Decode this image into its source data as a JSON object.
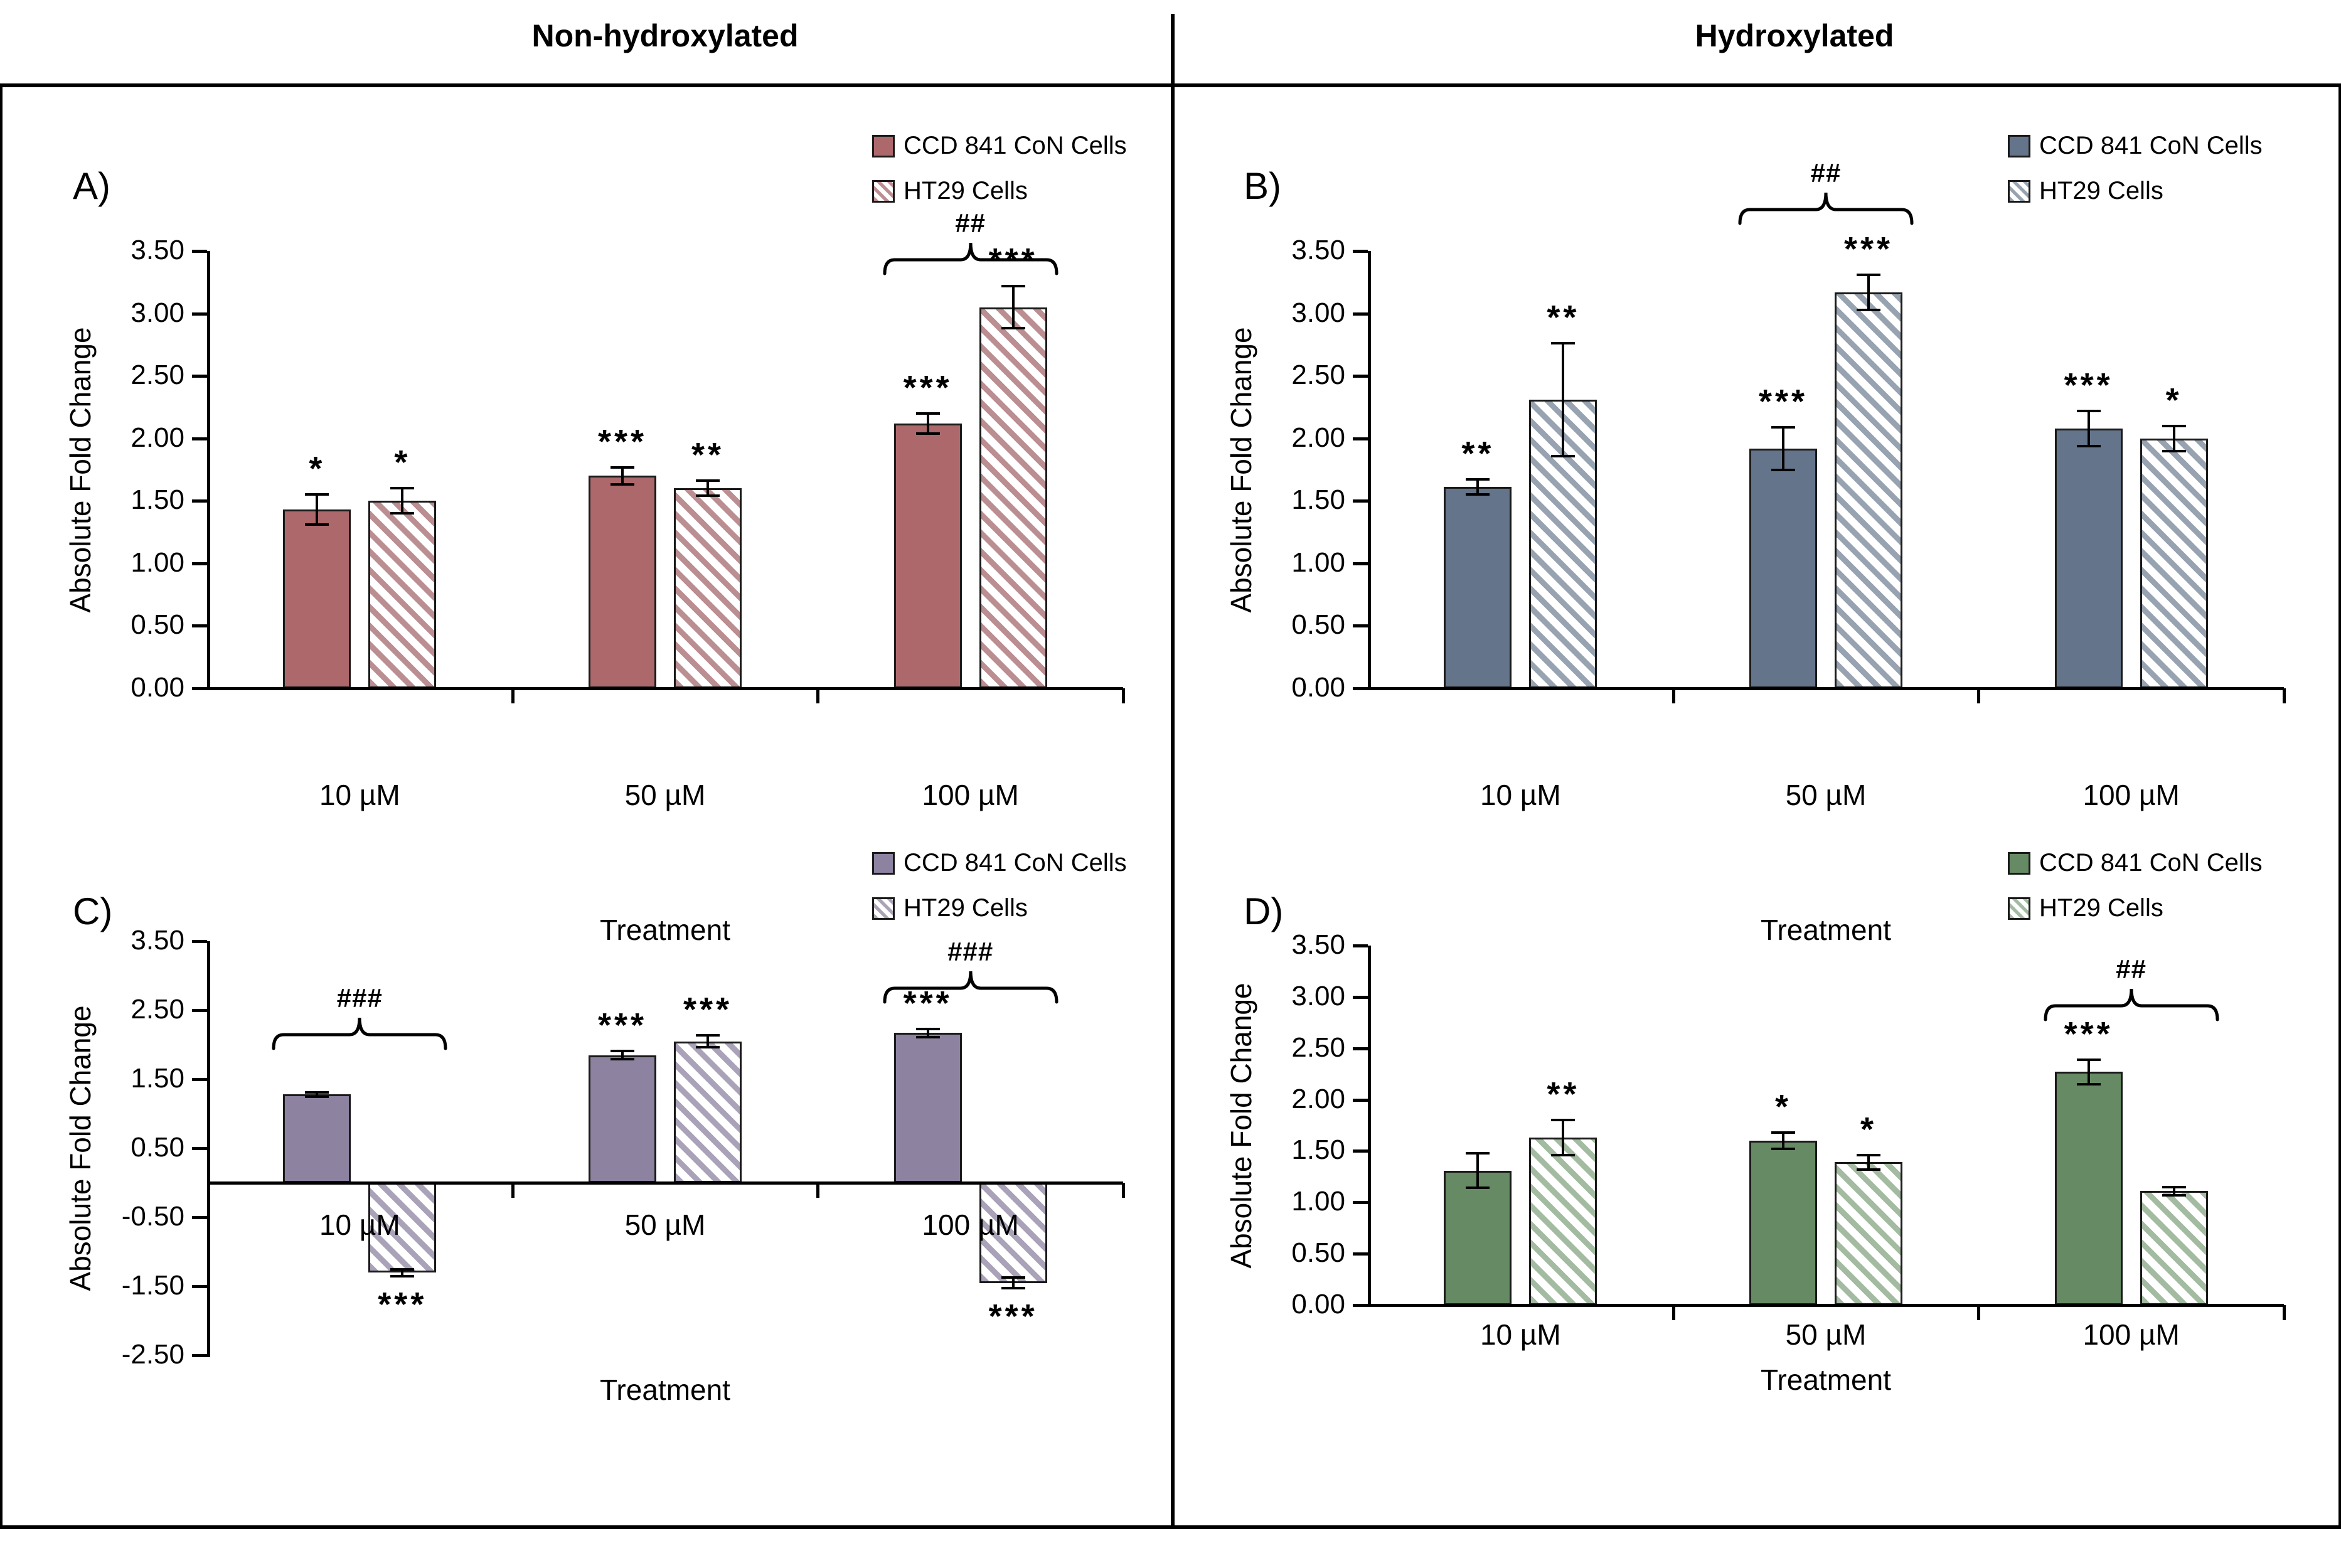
{
  "figure": {
    "column_headers": [
      "Non-hydroxylated",
      "Hydroxylated"
    ]
  },
  "chart_data": [
    {
      "id": "A",
      "panel_label": "A)",
      "type": "bar",
      "column": "Non-hydroxylated",
      "xlabel": "Treatment",
      "ylabel": "Absolute Fold Change",
      "categories": [
        "10 µM",
        "50 µM",
        "100 µM"
      ],
      "ylim": [
        0,
        3.5
      ],
      "ytick_labels": [
        "3.50",
        "3.00",
        "2.50",
        "2.00",
        "1.50",
        "1.00",
        "0.50",
        "0.00"
      ],
      "legend": [
        "CCD 841 CoN Cells",
        "HT29 Cells"
      ],
      "legend_position": "top-right",
      "grid": false,
      "colors": {
        "solid": "#ad686c",
        "stripe": "#bb8e91"
      },
      "series": [
        {
          "name": "CCD 841 CoN Cells",
          "style": "solid",
          "values": [
            1.43,
            1.7,
            2.12
          ],
          "errors": [
            0.12,
            0.07,
            0.08
          ],
          "sig": [
            "*",
            "***",
            "***"
          ]
        },
        {
          "name": "HT29 Cells",
          "style": "hatched",
          "values": [
            1.5,
            1.6,
            3.05
          ],
          "errors": [
            0.1,
            0.06,
            0.17
          ],
          "sig": [
            "*",
            "**",
            "***"
          ]
        }
      ],
      "braces": [
        {
          "group": 2,
          "label": "##",
          "y": 3.32
        }
      ]
    },
    {
      "id": "B",
      "panel_label": "B)",
      "type": "bar",
      "column": "Hydroxylated",
      "xlabel": "Treatment",
      "ylabel": "Absolute Fold Change",
      "categories": [
        "10 µM",
        "50 µM",
        "100 µM"
      ],
      "ylim": [
        0,
        3.5
      ],
      "ytick_labels": [
        "3.50",
        "3.00",
        "2.50",
        "2.00",
        "1.50",
        "1.00",
        "0.50",
        "0.00"
      ],
      "legend": [
        "CCD 841 CoN Cells",
        "HT29 Cells"
      ],
      "legend_position": "top-right",
      "grid": false,
      "colors": {
        "solid": "#64748a",
        "stripe": "#97a3b1"
      },
      "series": [
        {
          "name": "CCD 841 CoN Cells",
          "style": "solid",
          "values": [
            1.61,
            1.92,
            2.08
          ],
          "errors": [
            0.06,
            0.17,
            0.14
          ],
          "sig": [
            "**",
            "***",
            "***"
          ]
        },
        {
          "name": "HT29 Cells",
          "style": "hatched",
          "values": [
            2.31,
            3.17,
            2.0
          ],
          "errors": [
            0.45,
            0.14,
            0.1
          ],
          "sig": [
            "**",
            "***",
            "*"
          ]
        }
      ],
      "braces": [
        {
          "group": 1,
          "label": "##",
          "y": 3.72
        }
      ]
    },
    {
      "id": "C",
      "panel_label": "C)",
      "type": "bar",
      "column": "Non-hydroxylated",
      "xlabel": "Treatment",
      "ylabel": "Absolute Fold Change",
      "categories": [
        "10 µM",
        "50 µM",
        "100 µM"
      ],
      "ylim": [
        -2.5,
        3.5
      ],
      "ytick_labels": [
        "3.50",
        "2.50",
        "1.50",
        "0.50",
        "-0.50",
        "-1.50",
        "-2.50"
      ],
      "legend": [
        "CCD 841 CoN Cells",
        "HT29 Cells"
      ],
      "legend_position": "top-right",
      "grid": false,
      "colors": {
        "solid": "#8d82a0",
        "stripe": "#aaa2b8"
      },
      "series": [
        {
          "name": "CCD 841 CoN Cells",
          "style": "solid",
          "values": [
            1.28,
            1.85,
            2.17
          ],
          "errors": [
            0.03,
            0.06,
            0.06
          ],
          "sig": [
            "",
            "***",
            "***"
          ]
        },
        {
          "name": "HT29 Cells",
          "style": "hatched",
          "values": [
            -1.3,
            2.05,
            -1.45
          ],
          "errors": [
            0.05,
            0.09,
            0.08
          ],
          "sig": [
            "***",
            "***",
            "***"
          ]
        }
      ],
      "braces": [
        {
          "group": 0,
          "label": "###",
          "y": 1.95
        },
        {
          "group": 2,
          "label": "###",
          "y": 2.62
        }
      ]
    },
    {
      "id": "D",
      "panel_label": "D)",
      "type": "bar",
      "column": "Hydroxylated",
      "xlabel": "Treatment",
      "ylabel": "Absolute Fold Change",
      "categories": [
        "10 µM",
        "50 µM",
        "100 µM"
      ],
      "ylim": [
        0,
        3.5
      ],
      "ytick_labels": [
        "3.50",
        "3.00",
        "2.50",
        "2.00",
        "1.50",
        "1.00",
        "0.50",
        "0.00"
      ],
      "legend": [
        "CCD 841 CoN Cells",
        "HT29 Cells"
      ],
      "legend_position": "top-right",
      "grid": false,
      "colors": {
        "solid": "#668a63",
        "stripe": "#a3bba0"
      },
      "series": [
        {
          "name": "CCD 841 CoN Cells",
          "style": "solid",
          "values": [
            1.31,
            1.6,
            2.27
          ],
          "errors": [
            0.17,
            0.08,
            0.12
          ],
          "sig": [
            "",
            "*",
            "***"
          ]
        },
        {
          "name": "HT29 Cells",
          "style": "hatched",
          "values": [
            1.63,
            1.39,
            1.11
          ],
          "errors": [
            0.17,
            0.07,
            0.04
          ],
          "sig": [
            "**",
            "*",
            ""
          ]
        }
      ],
      "braces": [
        {
          "group": 2,
          "label": "##",
          "y": 2.78
        }
      ]
    }
  ]
}
